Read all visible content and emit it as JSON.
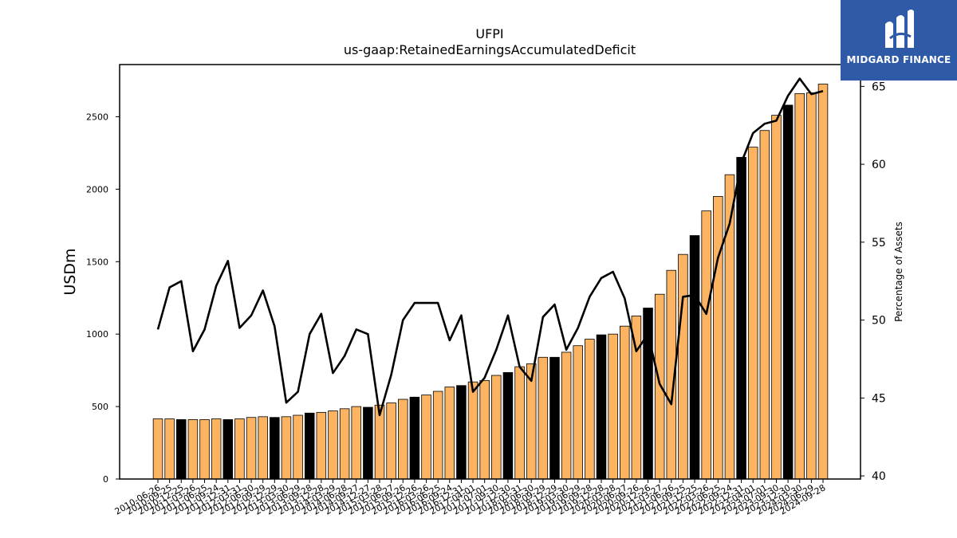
{
  "chart_data": {
    "type": "bar",
    "title": "UFPI",
    "subtitle": "us-gaap:RetainedEarningsAccumulatedDeficit",
    "ylabel": "USDm",
    "y2label": "Percentage of Assets",
    "ylim": [
      0,
      2860
    ],
    "y2lim": [
      39.8,
      66.4
    ],
    "yticks": [
      0,
      500,
      1000,
      1500,
      2000,
      2500
    ],
    "y2ticks": [
      40,
      45,
      50,
      55,
      60,
      65
    ],
    "categories": [
      "2010-06-26",
      "2010-09-25",
      "2010-12-25",
      "2011-03-26",
      "2011-06-25",
      "2011-09-24",
      "2011-12-31",
      "2012-03-31",
      "2012-06-30",
      "2012-09-29",
      "2012-12-29",
      "2013-03-30",
      "2013-06-29",
      "2013-09-28",
      "2013-12-28",
      "2014-03-29",
      "2014-06-28",
      "2014-09-27",
      "2014-12-27",
      "2015-03-28",
      "2015-06-27",
      "2015-09-26",
      "2015-12-26",
      "2016-03-26",
      "2016-06-25",
      "2016-09-24",
      "2016-12-31",
      "2017-04-01",
      "2017-07-01",
      "2017-09-30",
      "2017-12-30",
      "2018-03-31",
      "2018-06-30",
      "2018-09-29",
      "2018-12-29",
      "2019-03-30",
      "2019-06-29",
      "2019-09-28",
      "2019-12-28",
      "2020-03-28",
      "2020-06-27",
      "2020-09-26",
      "2020-12-26",
      "2021-03-27",
      "2021-06-26",
      "2021-09-25",
      "2021-12-25",
      "2022-03-26",
      "2022-06-25",
      "2022-09-24",
      "2022-12-31",
      "2023-04-01",
      "2023-07-01",
      "2023-09-30",
      "2023-12-30",
      "2024-03-30",
      "2024-06-29",
      "2024-09-28"
    ],
    "series": [
      {
        "type": "bar",
        "values": [
          415,
          415,
          410,
          410,
          410,
          415,
          410,
          415,
          425,
          430,
          425,
          430,
          440,
          455,
          460,
          470,
          485,
          500,
          495,
          510,
          525,
          550,
          565,
          580,
          605,
          635,
          645,
          670,
          680,
          715,
          735,
          775,
          795,
          840,
          840,
          875,
          920,
          965,
          995,
          1000,
          1055,
          1125,
          1180,
          1275,
          1440,
          1550,
          1680,
          1850,
          1950,
          2100,
          2220,
          2290,
          2405,
          2510,
          2580,
          2660,
          2665,
          2725
        ]
      },
      {
        "type": "line",
        "axis": "right",
        "values": [
          49.4,
          52.1,
          52.5,
          48.0,
          49.4,
          52.2,
          53.8,
          49.5,
          50.3,
          51.9,
          49.6,
          44.7,
          45.4,
          49.1,
          50.4,
          46.6,
          47.7,
          49.4,
          49.1,
          43.9,
          46.5,
          50.0,
          51.1,
          51.1,
          51.1,
          48.7,
          50.3,
          45.4,
          46.3,
          48.1,
          50.3,
          47.0,
          46.1,
          50.2,
          51.0,
          48.1,
          49.5,
          51.5,
          52.7,
          53.1,
          51.4,
          48.0,
          49.1,
          45.9,
          44.6,
          51.5,
          51.6,
          50.4,
          54.0,
          56.2,
          60.1,
          62.0,
          62.6,
          62.8,
          64.4,
          65.5,
          64.5,
          64.7
        ]
      }
    ],
    "highlight_color": "#000000",
    "bar_color": "#fdb462",
    "line_color": "#000000",
    "highlighted_bars": [
      2,
      6,
      10,
      13,
      18,
      22,
      26,
      30,
      34,
      38,
      42,
      46,
      50,
      54
    ]
  },
  "logo": {
    "text": "MIDGARD FINANCE",
    "background": "#2f5aa8"
  }
}
